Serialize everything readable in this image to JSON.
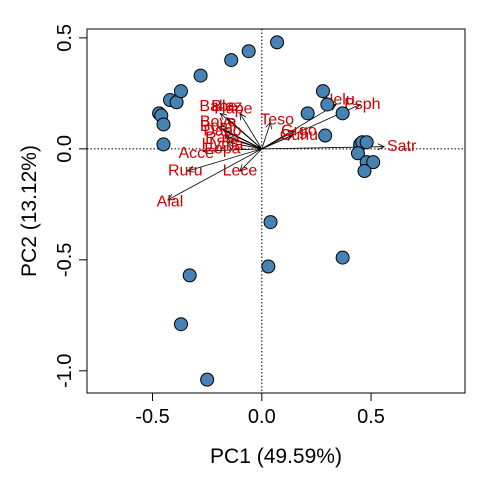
{
  "chart_data": {
    "type": "scatter",
    "subtype": "pca-biplot",
    "title": "",
    "xlabel": "PC1 (49.59%)",
    "ylabel": "PC2 (13.12%)",
    "xlim": [
      -0.8,
      0.93
    ],
    "ylim": [
      -1.1,
      0.54
    ],
    "xticks": [
      -0.5,
      0.0,
      0.5
    ],
    "yticks": [
      -1.0,
      -0.5,
      0.0,
      0.5
    ],
    "xtick_labels": [
      "-0.5",
      "0.0",
      "0.5"
    ],
    "ytick_labels": [
      "-1.0",
      "-0.5",
      "0.0",
      "0.5"
    ],
    "reference_lines": {
      "x": 0,
      "y": 0,
      "style": "dotted"
    },
    "grid": false,
    "colors": {
      "point_fill": "#4682b4",
      "point_stroke": "#000000",
      "arrow": "#000000",
      "label": "#cc0000"
    },
    "points": [
      {
        "x": -0.47,
        "y": 0.16
      },
      {
        "x": -0.46,
        "y": 0.15
      },
      {
        "x": -0.45,
        "y": 0.11
      },
      {
        "x": -0.45,
        "y": 0.02
      },
      {
        "x": -0.42,
        "y": 0.22
      },
      {
        "x": -0.39,
        "y": 0.21
      },
      {
        "x": -0.37,
        "y": 0.26
      },
      {
        "x": -0.28,
        "y": 0.33
      },
      {
        "x": -0.14,
        "y": 0.4
      },
      {
        "x": -0.06,
        "y": 0.44
      },
      {
        "x": 0.07,
        "y": 0.48
      },
      {
        "x": 0.28,
        "y": 0.26
      },
      {
        "x": 0.3,
        "y": 0.2
      },
      {
        "x": 0.37,
        "y": 0.16
      },
      {
        "x": 0.21,
        "y": 0.16
      },
      {
        "x": 0.29,
        "y": 0.06
      },
      {
        "x": 0.45,
        "y": 0.02
      },
      {
        "x": 0.46,
        "y": 0.03
      },
      {
        "x": 0.48,
        "y": 0.03
      },
      {
        "x": 0.44,
        "y": -0.02
      },
      {
        "x": 0.48,
        "y": -0.06
      },
      {
        "x": 0.51,
        "y": -0.06
      },
      {
        "x": 0.47,
        "y": -0.1
      },
      {
        "x": 0.04,
        "y": -0.33
      },
      {
        "x": 0.03,
        "y": -0.53
      },
      {
        "x": 0.37,
        "y": -0.49
      },
      {
        "x": -0.33,
        "y": -0.57
      },
      {
        "x": -0.37,
        "y": -0.79
      },
      {
        "x": -0.25,
        "y": -1.04
      }
    ],
    "loadings": [
      {
        "name": "Alal",
        "x": -0.43,
        "y": -0.23,
        "lx": -0.42,
        "ly": -0.24
      },
      {
        "name": "Ruru",
        "x": -0.34,
        "y": -0.1,
        "lx": -0.35,
        "ly": -0.1
      },
      {
        "name": "Acce",
        "x": -0.27,
        "y": -0.01,
        "lx": -0.3,
        "ly": -0.02
      },
      {
        "name": "Lece",
        "x": -0.1,
        "y": -0.1,
        "lx": -0.1,
        "ly": -0.1
      },
      {
        "name": "Babe",
        "x": -0.19,
        "y": 0.16,
        "lx": -0.2,
        "ly": 0.19
      },
      {
        "name": "Blaz",
        "x": -0.16,
        "y": 0.14,
        "lx": -0.16,
        "ly": 0.19
      },
      {
        "name": "Hape",
        "x": -0.1,
        "y": 0.16,
        "lx": -0.13,
        "ly": 0.18
      },
      {
        "name": "Bove",
        "x": -0.2,
        "y": 0.1,
        "lx": -0.2,
        "ly": 0.12
      },
      {
        "name": "Boml",
        "x": -0.18,
        "y": 0.09,
        "lx": -0.2,
        "ly": 0.1
      },
      {
        "name": "Dapo",
        "x": -0.17,
        "y": 0.08,
        "lx": -0.18,
        "ly": 0.08
      },
      {
        "name": "Rara",
        "x": -0.17,
        "y": 0.06,
        "lx": -0.18,
        "ly": 0.05
      },
      {
        "name": "Hyma",
        "x": -0.16,
        "y": 0.05,
        "lx": -0.18,
        "ly": 0.02
      },
      {
        "name": "Fopa",
        "x": -0.16,
        "y": 0.03,
        "lx": -0.18,
        "ly": 0.0
      },
      {
        "name": "Teso",
        "x": 0.04,
        "y": 0.12,
        "lx": 0.07,
        "ly": 0.13
      },
      {
        "name": "Grgo",
        "x": 0.15,
        "y": 0.08,
        "lx": 0.17,
        "ly": 0.08
      },
      {
        "name": "Cuhu",
        "x": 0.14,
        "y": 0.06,
        "lx": 0.17,
        "ly": 0.06
      },
      {
        "name": "Nelu",
        "x": 0.34,
        "y": 0.2,
        "lx": 0.35,
        "ly": 0.22
      },
      {
        "name": "Psph",
        "x": 0.45,
        "y": 0.2,
        "lx": 0.46,
        "ly": 0.2
      },
      {
        "name": "Satr",
        "x": 0.56,
        "y": 0.01,
        "lx": 0.64,
        "ly": 0.01
      }
    ]
  }
}
